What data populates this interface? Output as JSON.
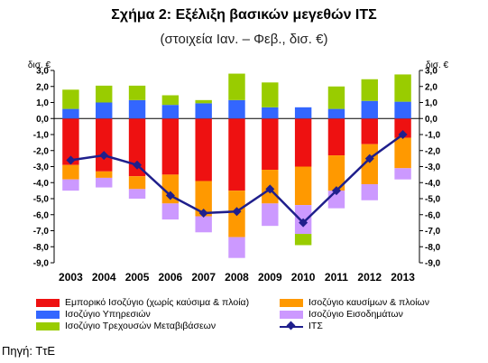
{
  "title": "Σχήμα 2: Εξέλιξη βασικών μεγεθών ΙΤΣ",
  "subtitle": "(στοιχεία Ιαν. – Φεβ., δισ. €)",
  "unit_left": "δισ. €",
  "unit_right": "δισ. €",
  "source": "Πηγή: ΤτΕ",
  "colors": {
    "trade_ex_fuel": "#ee1111",
    "fuel": "#ff9900",
    "services": "#3366ff",
    "income": "#cc99ff",
    "transfers": "#99cc00",
    "current_account": "#1f1f8c"
  },
  "chart_data": {
    "type": "bar",
    "stacked": true,
    "title": "Σχήμα 2: Εξέλιξη βασικών μεγεθών ΙΤΣ",
    "categories": [
      "2003",
      "2004",
      "2005",
      "2006",
      "2007",
      "2008",
      "2009",
      "2010",
      "2011",
      "2012",
      "2013"
    ],
    "ylim": [
      -9.0,
      3.0
    ],
    "yticks": [
      "3,0",
      "2,0",
      "1,0",
      "0,0",
      "-1,0",
      "-2,0",
      "-3,0",
      "-4,0",
      "-5,0",
      "-6,0",
      "-7,0",
      "-8,0",
      "-9,0"
    ],
    "series": [
      {
        "name": "Εμπορικό Ισοζύγιο (χωρίς καύσιμα & πλοία)",
        "key": "trade_ex_fuel",
        "values": [
          -2.9,
          -3.3,
          -3.6,
          -3.5,
          -3.9,
          -4.5,
          -3.2,
          -3.0,
          -2.3,
          -1.6,
          -1.2
        ]
      },
      {
        "name": "Ισοζύγιο καυσίμων & πλοίων",
        "key": "fuel",
        "values": [
          -0.9,
          -0.4,
          -0.8,
          -1.8,
          -2.2,
          -2.9,
          -2.1,
          -2.4,
          -2.2,
          -2.5,
          -1.9
        ]
      },
      {
        "name": "Ισοζύγιο Υπηρεσιών",
        "key": "services",
        "values": [
          0.6,
          1.0,
          1.15,
          0.85,
          0.95,
          1.15,
          0.7,
          0.7,
          0.6,
          1.1,
          1.05
        ]
      },
      {
        "name": "Ισοζύγιο Εισοδημάτων",
        "key": "income",
        "values": [
          -0.7,
          -0.6,
          -0.6,
          -1.0,
          -1.0,
          -1.3,
          -1.4,
          -1.8,
          -1.1,
          -1.0,
          -0.7
        ]
      },
      {
        "name": "Ισοζύγιο Τρεχουσών Μεταβιβάσεων",
        "key": "transfers",
        "values": [
          1.2,
          1.05,
          0.9,
          0.6,
          0.2,
          1.65,
          1.55,
          -0.7,
          1.4,
          1.35,
          1.7
        ]
      },
      {
        "name": "ΙΤΣ",
        "key": "current_account",
        "type": "line",
        "values": [
          -2.6,
          -2.3,
          -2.9,
          -4.8,
          -5.9,
          -5.8,
          -4.4,
          -6.5,
          -4.5,
          -2.5,
          -1.0
        ]
      }
    ],
    "legend": "bottom"
  }
}
